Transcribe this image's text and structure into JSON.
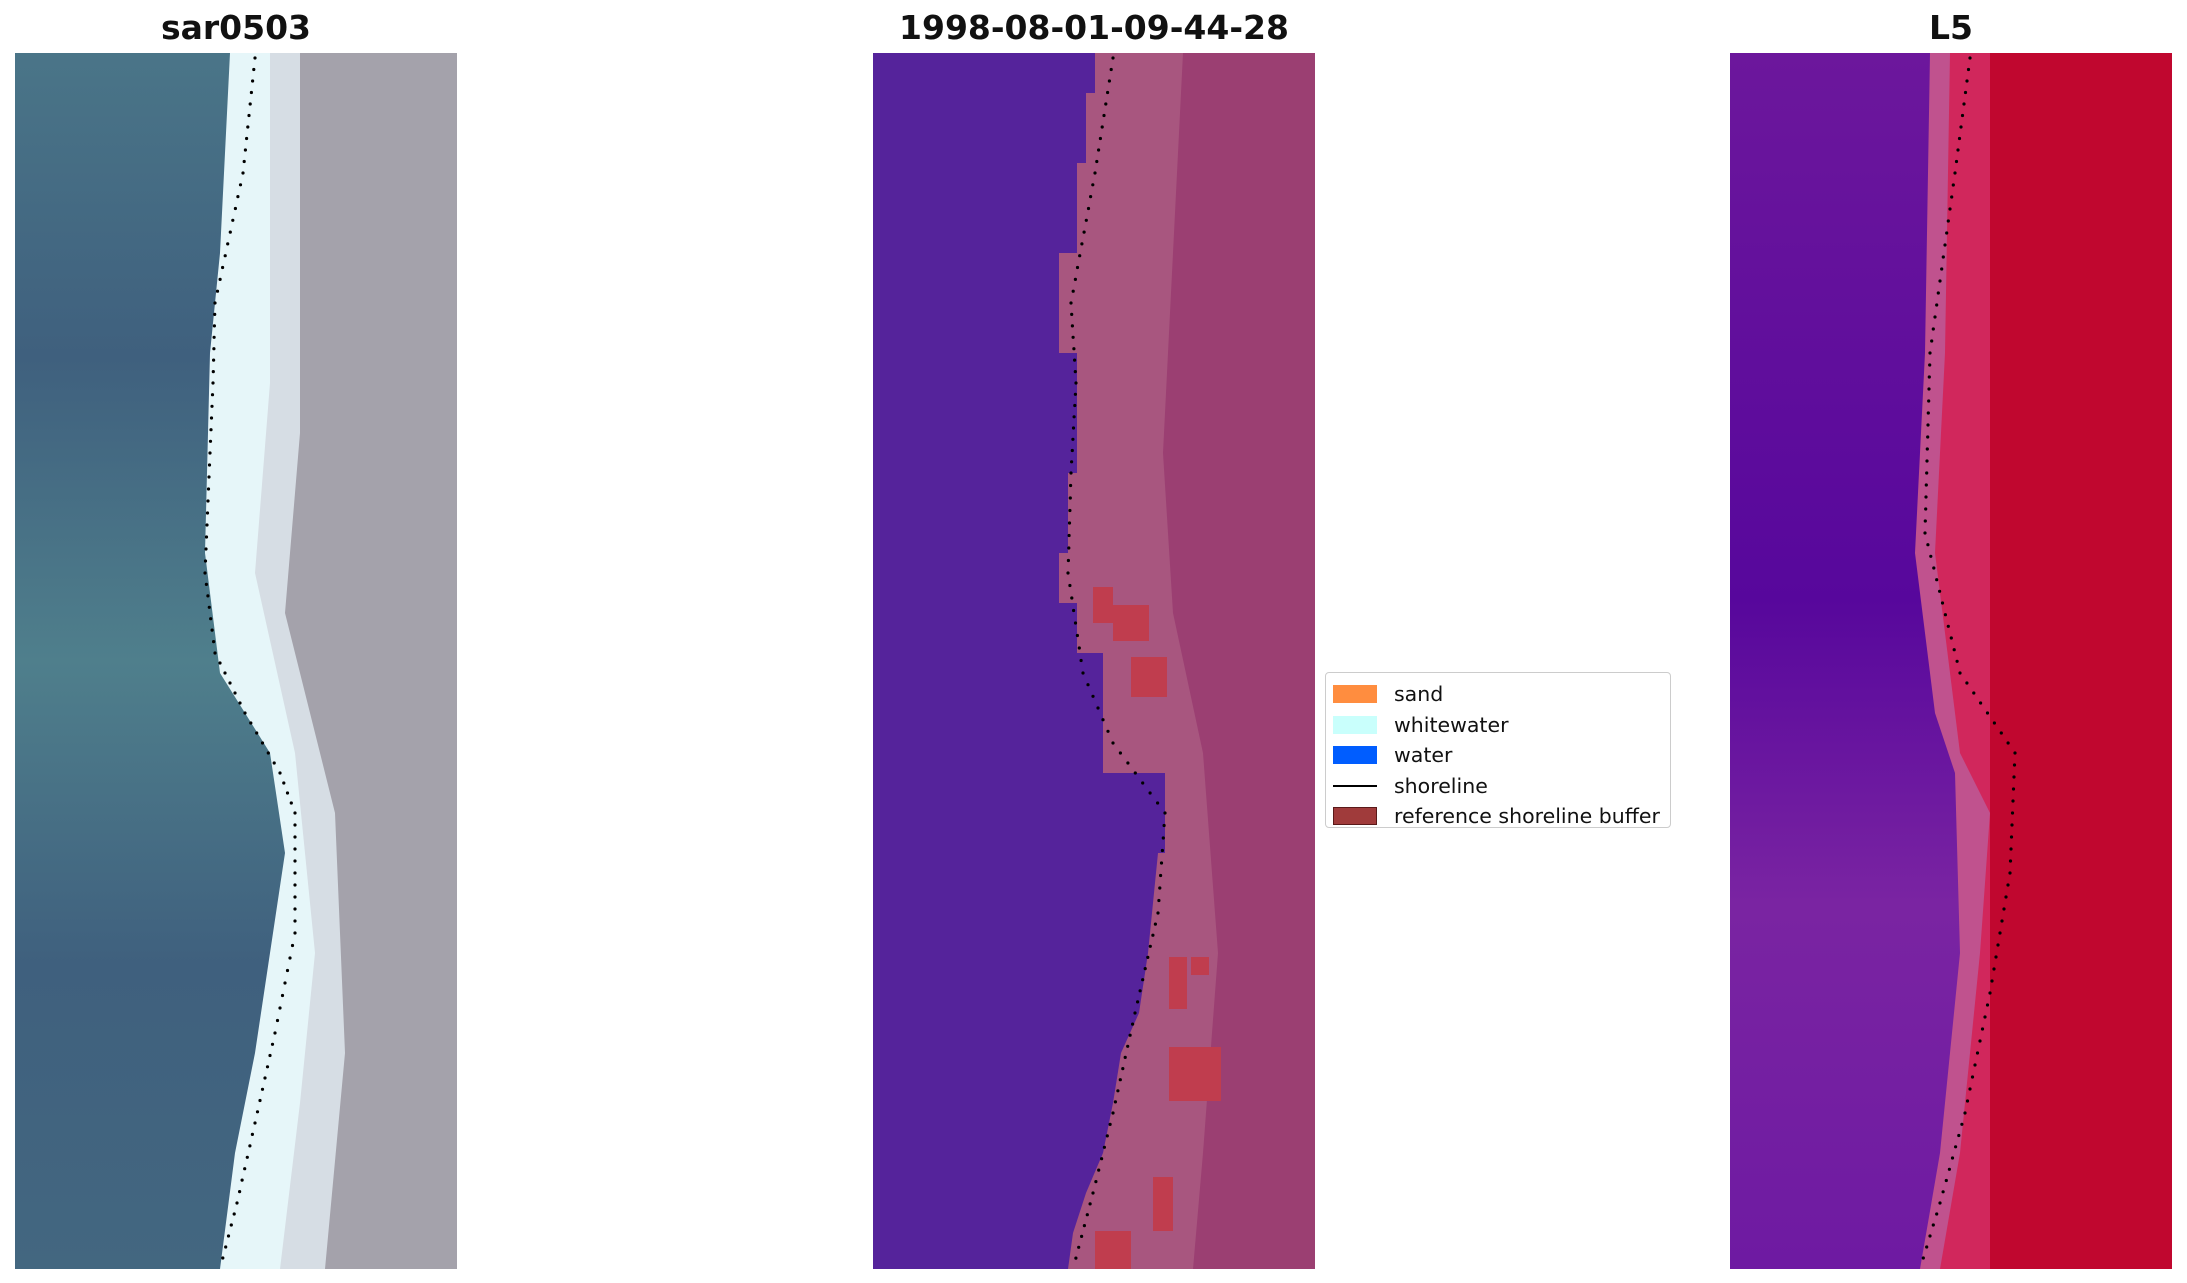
{
  "panels": {
    "rgb": {
      "title": "sar0503",
      "colors": {
        "water": "#3f607e",
        "water_teal": "#4f7f8c",
        "whitewater": "#e6f6f9",
        "beach_light": "#d6dde4",
        "land": "#a4a2ab"
      }
    },
    "classification": {
      "title": "1998-08-01-09-44-28",
      "colors": {
        "water": "#55239b",
        "buffer": "#a8567f",
        "land": "#9b3f72",
        "sand_in_buffer": "#c03d4e"
      }
    },
    "index": {
      "title": "L5",
      "colors": {
        "water": "#6c179c",
        "water_dark": "#57079c",
        "buffer": "#c0528e",
        "land": "#c0072f"
      }
    }
  },
  "legend": {
    "items": [
      {
        "label": "sand",
        "type": "patch",
        "color": "#ff8d3f",
        "edge": "#ff8d3f"
      },
      {
        "label": "whitewater",
        "type": "patch",
        "color": "#c9fffc",
        "edge": "#c9fffc"
      },
      {
        "label": "water",
        "type": "patch",
        "color": "#005dff",
        "edge": "#005dff"
      },
      {
        "label": "shoreline",
        "type": "line",
        "color": "#000000"
      },
      {
        "label": "reference shoreline buffer",
        "type": "patch",
        "color": "#a03b3b",
        "edge": "#5a1a1a"
      }
    ]
  }
}
